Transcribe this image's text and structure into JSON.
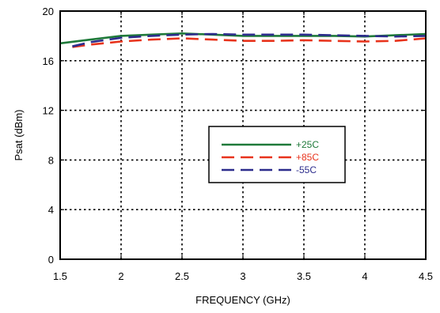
{
  "chart_data": {
    "type": "line",
    "title": "",
    "xlabel": "FREQUENCY (GHz)",
    "ylabel": "Psat (dBm)",
    "xlim": [
      1.5,
      4.5
    ],
    "ylim": [
      0,
      20
    ],
    "x_ticks": [
      "1.5",
      "2",
      "2.5",
      "3",
      "3.5",
      "4",
      "4.5"
    ],
    "y_ticks": [
      "0",
      "4",
      "8",
      "12",
      "16",
      "20"
    ],
    "grid": true,
    "legend_position": "center-right",
    "series": [
      {
        "name": "+25C",
        "color": "#1f7a3a",
        "dash": "solid",
        "x": [
          1.5,
          1.75,
          2.0,
          2.25,
          2.5,
          2.75,
          3.0,
          3.25,
          3.5,
          3.75,
          4.0,
          4.25,
          4.5
        ],
        "y": [
          17.4,
          17.7,
          18.0,
          18.1,
          18.2,
          18.1,
          18.0,
          18.0,
          18.0,
          18.0,
          17.95,
          18.05,
          18.15
        ]
      },
      {
        "name": "+85C",
        "color": "#e8331c",
        "dash": "long-dash",
        "x": [
          1.6,
          1.75,
          2.0,
          2.25,
          2.5,
          2.75,
          3.0,
          3.25,
          3.5,
          3.75,
          4.0,
          4.25,
          4.5
        ],
        "y": [
          17.1,
          17.3,
          17.55,
          17.7,
          17.8,
          17.7,
          17.6,
          17.6,
          17.65,
          17.6,
          17.55,
          17.6,
          17.8
        ]
      },
      {
        "name": "-55C",
        "color": "#2c2c8c",
        "dash": "long-dash",
        "x": [
          1.6,
          1.75,
          2.0,
          2.25,
          2.5,
          2.75,
          3.0,
          3.25,
          3.5,
          3.75,
          4.0,
          4.25,
          4.5
        ],
        "y": [
          17.15,
          17.5,
          17.85,
          18.0,
          18.1,
          18.15,
          18.1,
          18.1,
          18.1,
          18.05,
          18.0,
          17.95,
          18.0
        ]
      }
    ]
  }
}
